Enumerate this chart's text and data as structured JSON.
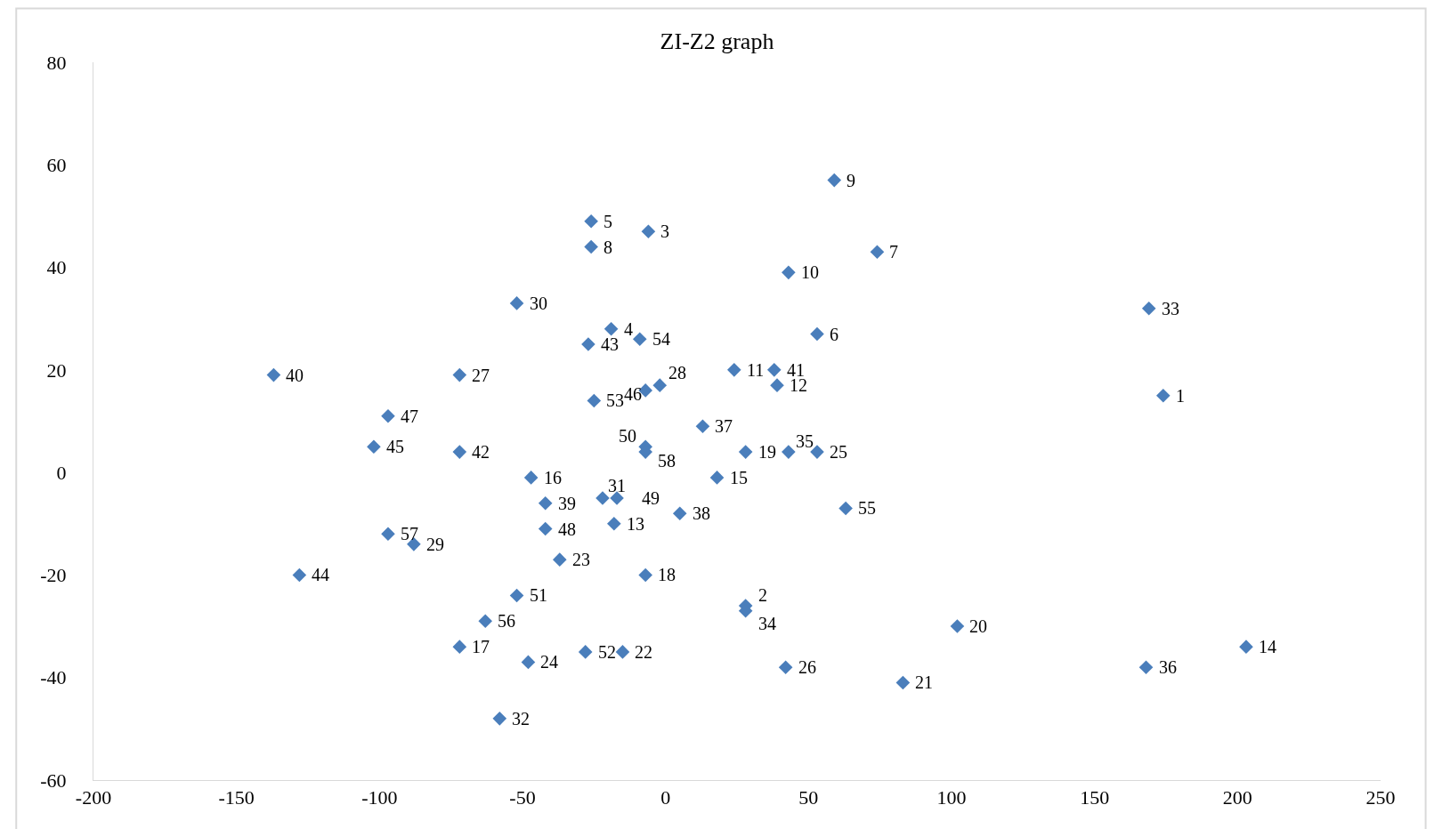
{
  "chart_data": {
    "type": "scatter",
    "title": "ZI-Z2 graph",
    "x": [
      174,
      28,
      -6,
      -19,
      -26,
      53,
      74,
      -26,
      59,
      43,
      24,
      39,
      -18,
      203,
      18,
      -47,
      -72,
      -7,
      28,
      102,
      83,
      -15,
      -37,
      -48,
      53,
      42,
      -72,
      -2,
      -88,
      -52,
      -22,
      -58,
      169,
      28,
      43,
      168,
      13,
      5,
      -42,
      -137,
      38,
      -72,
      -27,
      -128,
      -102,
      -7,
      -97,
      -42,
      -17,
      -7,
      -52,
      -28,
      -25,
      -9,
      63,
      -63,
      -97,
      -7
    ],
    "values": [
      15,
      -26,
      47,
      28,
      49,
      27,
      43,
      44,
      57,
      39,
      20,
      17,
      -10,
      -34,
      -1,
      -1,
      -34,
      -20,
      4,
      -30,
      -41,
      -35,
      -17,
      -37,
      4,
      -38,
      19,
      17,
      -14,
      33,
      -5,
      -48,
      32,
      -27,
      4,
      -38,
      9,
      -8,
      -6,
      19,
      20,
      4,
      25,
      -20,
      5,
      16,
      11,
      -11,
      -5,
      5,
      -24,
      -35,
      14,
      26,
      -7,
      -29,
      -12,
      4
    ],
    "annotations": [
      {
        "text": "1",
        "x": 174,
        "y": 15
      },
      {
        "text": "2",
        "x": 28,
        "y": -26
      },
      {
        "text": "3",
        "x": -6,
        "y": 47
      },
      {
        "text": "4",
        "x": -19,
        "y": 28
      },
      {
        "text": "5",
        "x": -26,
        "y": 49
      },
      {
        "text": "6",
        "x": 53,
        "y": 27
      },
      {
        "text": "7",
        "x": 74,
        "y": 43
      },
      {
        "text": "8",
        "x": -26,
        "y": 44
      },
      {
        "text": "9",
        "x": 59,
        "y": 57
      },
      {
        "text": "10",
        "x": 43,
        "y": 39
      },
      {
        "text": "11",
        "x": 24,
        "y": 20
      },
      {
        "text": "12",
        "x": 39,
        "y": 17
      },
      {
        "text": "13",
        "x": -18,
        "y": -10
      },
      {
        "text": "14",
        "x": 203,
        "y": -34
      },
      {
        "text": "15",
        "x": 18,
        "y": -1
      },
      {
        "text": "16",
        "x": -47,
        "y": -1
      },
      {
        "text": "17",
        "x": -72,
        "y": -34
      },
      {
        "text": "18",
        "x": -7,
        "y": -20
      },
      {
        "text": "19",
        "x": 28,
        "y": 4
      },
      {
        "text": "20",
        "x": 102,
        "y": -30
      },
      {
        "text": "21",
        "x": 83,
        "y": -41
      },
      {
        "text": "22",
        "x": -15,
        "y": -35
      },
      {
        "text": "23",
        "x": -37,
        "y": -17
      },
      {
        "text": "24",
        "x": -48,
        "y": -37
      },
      {
        "text": "25",
        "x": 53,
        "y": 4
      },
      {
        "text": "26",
        "x": 42,
        "y": -38
      },
      {
        "text": "27",
        "x": -72,
        "y": 19
      },
      {
        "text": "28",
        "x": -2,
        "y": 17
      },
      {
        "text": "29",
        "x": -88,
        "y": -14
      },
      {
        "text": "30",
        "x": -52,
        "y": 33
      },
      {
        "text": "31",
        "x": -22,
        "y": -5
      },
      {
        "text": "32",
        "x": -58,
        "y": -48
      },
      {
        "text": "33",
        "x": 169,
        "y": 32
      },
      {
        "text": "34",
        "x": 28,
        "y": -27
      },
      {
        "text": "35",
        "x": 43,
        "y": 4
      },
      {
        "text": "36",
        "x": 168,
        "y": -38
      },
      {
        "text": "37",
        "x": 13,
        "y": 9
      },
      {
        "text": "38",
        "x": 5,
        "y": -8
      },
      {
        "text": "39",
        "x": -42,
        "y": -6
      },
      {
        "text": "40",
        "x": -137,
        "y": 19
      },
      {
        "text": "41",
        "x": 38,
        "y": 20
      },
      {
        "text": "42",
        "x": -72,
        "y": 4
      },
      {
        "text": "43",
        "x": -27,
        "y": 25
      },
      {
        "text": "44",
        "x": -128,
        "y": -20
      },
      {
        "text": "45",
        "x": -102,
        "y": 5
      },
      {
        "text": "46",
        "x": -7,
        "y": 16
      },
      {
        "text": "47",
        "x": -97,
        "y": 11
      },
      {
        "text": "48",
        "x": -42,
        "y": -11
      },
      {
        "text": "49",
        "x": -17,
        "y": -5
      },
      {
        "text": "50",
        "x": -7,
        "y": 5
      },
      {
        "text": "51",
        "x": -52,
        "y": -24
      },
      {
        "text": "52",
        "x": -28,
        "y": -35
      },
      {
        "text": "53",
        "x": -25,
        "y": 14
      },
      {
        "text": "54",
        "x": -9,
        "y": 26
      },
      {
        "text": "55",
        "x": 63,
        "y": -7
      },
      {
        "text": "56",
        "x": -63,
        "y": -29
      },
      {
        "text": "57",
        "x": -97,
        "y": -12
      },
      {
        "text": "58",
        "x": -7,
        "y": 4
      }
    ],
    "color": "#4a7ebb",
    "marker": "diamond",
    "xlim": [
      -200,
      250
    ],
    "xticks": [
      -200,
      -150,
      -100,
      -50,
      0,
      50,
      100,
      150,
      200,
      250
    ],
    "ylim": [
      -60,
      80
    ],
    "yticks": [
      -60,
      -40,
      -20,
      0,
      20,
      40,
      60,
      80
    ],
    "legend": false
  }
}
